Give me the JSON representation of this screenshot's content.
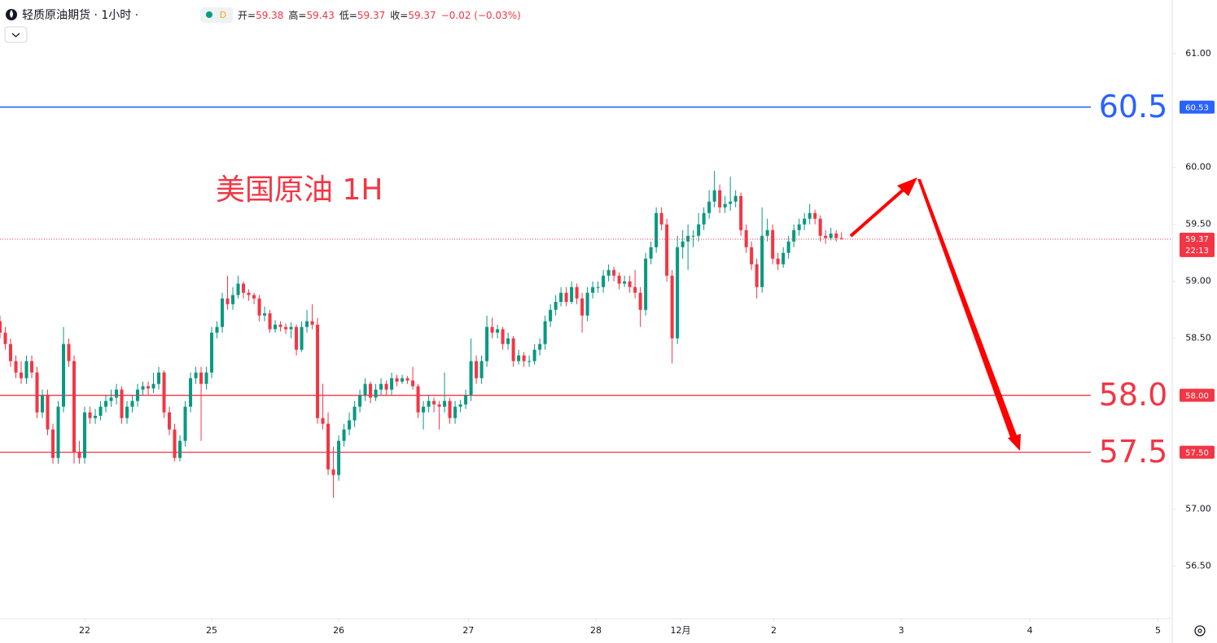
{
  "chart_data": {
    "type": "candlestick",
    "header": {
      "symbol": "轻质原油期货 · 1小时 ·",
      "badge": "D",
      "items": [
        {
          "label": "开=",
          "value": "59.38"
        },
        {
          "label": "高=",
          "value": "59.43"
        },
        {
          "label": "低=",
          "value": "59.37"
        },
        {
          "label": "收=",
          "value": "59.37"
        }
      ],
      "change": "−0.02 (−0.03%)"
    },
    "annotation": "美国原油 1H",
    "up_color": "#089981",
    "down_color": "#f23645",
    "xlim": [
      0,
      221.5
    ],
    "xticks": [
      {
        "value": 16,
        "label": "22"
      },
      {
        "value": 40,
        "label": "25"
      },
      {
        "value": 64,
        "label": "26"
      },
      {
        "value": 88.5,
        "label": "27"
      },
      {
        "value": 112.6,
        "label": "28"
      },
      {
        "value": 128.6,
        "label": "12月"
      },
      {
        "value": 146.2,
        "label": "2"
      },
      {
        "value": 170.3,
        "label": "3"
      },
      {
        "value": 194.6,
        "label": "4"
      },
      {
        "value": 218.8,
        "label": "5"
      }
    ],
    "ylim": [
      56.04,
      61.47
    ],
    "yticks": [
      {
        "value": 61,
        "label": "61.00"
      },
      {
        "value": 60,
        "label": "60.00"
      },
      {
        "value": 59.5,
        "label": "59.50"
      },
      {
        "value": 59,
        "label": "59.00"
      },
      {
        "value": 58.5,
        "label": "58.50"
      },
      {
        "value": 57,
        "label": "57.00"
      },
      {
        "value": 56.5,
        "label": "56.50"
      }
    ],
    "levels": [
      {
        "value": 60.53,
        "label": "60.53",
        "big_label": "60.5",
        "color": "#2962ff"
      },
      {
        "value": 58.0,
        "label": "58.00",
        "big_label": "58.0",
        "color": "#f23645"
      },
      {
        "value": 57.5,
        "label": "57.50",
        "big_label": "57.5",
        "color": "#f23645"
      }
    ],
    "current": {
      "value": 59.37,
      "label": "59.37",
      "countdown": "22:13",
      "color": "#f23645"
    },
    "candles": [
      [
        58.65,
        58.7,
        58.5,
        58.55
      ],
      [
        58.55,
        58.6,
        58.4,
        58.45
      ],
      [
        58.45,
        58.5,
        58.25,
        58.3
      ],
      [
        58.3,
        58.35,
        58.15,
        58.2
      ],
      [
        58.2,
        58.3,
        58.1,
        58.15
      ],
      [
        58.15,
        58.35,
        58.1,
        58.3
      ],
      [
        58.3,
        58.35,
        58.15,
        58.2
      ],
      [
        58.2,
        58.25,
        57.8,
        57.85
      ],
      [
        57.85,
        58.05,
        57.8,
        58.0
      ],
      [
        58.0,
        58.05,
        57.65,
        57.7
      ],
      [
        57.7,
        57.75,
        57.4,
        57.45
      ],
      [
        57.45,
        57.95,
        57.4,
        57.9
      ],
      [
        57.9,
        58.6,
        57.85,
        58.45
      ],
      [
        58.45,
        58.5,
        58.25,
        58.3
      ],
      [
        58.3,
        58.35,
        57.4,
        57.5
      ],
      [
        57.5,
        57.6,
        57.4,
        57.45
      ],
      [
        57.45,
        57.9,
        57.4,
        57.85
      ],
      [
        57.85,
        57.9,
        57.75,
        57.8
      ],
      [
        57.8,
        57.88,
        57.75,
        57.82
      ],
      [
        57.82,
        57.95,
        57.78,
        57.9
      ],
      [
        57.9,
        58.0,
        57.85,
        57.95
      ],
      [
        57.95,
        58.05,
        57.9,
        57.98
      ],
      [
        57.98,
        58.1,
        57.92,
        58.05
      ],
      [
        58.05,
        58.08,
        57.75,
        57.8
      ],
      [
        57.8,
        57.95,
        57.75,
        57.9
      ],
      [
        57.9,
        58.0,
        57.85,
        57.95
      ],
      [
        57.95,
        58.1,
        57.9,
        58.05
      ],
      [
        58.05,
        58.12,
        58.0,
        58.08
      ],
      [
        58.08,
        58.12,
        58.0,
        58.06
      ],
      [
        58.06,
        58.2,
        58.02,
        58.1
      ],
      [
        58.1,
        58.25,
        58.05,
        58.2
      ],
      [
        58.2,
        58.22,
        57.8,
        57.85
      ],
      [
        57.85,
        57.9,
        57.65,
        57.7
      ],
      [
        57.7,
        57.75,
        57.42,
        57.45
      ],
      [
        57.45,
        57.65,
        57.42,
        57.6
      ],
      [
        57.6,
        57.95,
        57.55,
        57.9
      ],
      [
        57.9,
        58.2,
        57.85,
        58.15
      ],
      [
        58.15,
        58.25,
        58.1,
        58.2
      ],
      [
        58.2,
        58.25,
        57.6,
        58.1
      ],
      [
        58.1,
        58.25,
        58.05,
        58.2
      ],
      [
        58.2,
        58.6,
        58.15,
        58.55
      ],
      [
        58.55,
        58.65,
        58.5,
        58.6
      ],
      [
        58.6,
        58.9,
        58.55,
        58.85
      ],
      [
        58.85,
        59.05,
        58.75,
        58.8
      ],
      [
        58.8,
        58.95,
        58.75,
        58.88
      ],
      [
        58.88,
        59.05,
        58.85,
        58.98
      ],
      [
        58.98,
        59.0,
        58.85,
        58.9
      ],
      [
        58.9,
        58.93,
        58.83,
        58.88
      ],
      [
        58.88,
        58.9,
        58.8,
        58.85
      ],
      [
        58.85,
        58.88,
        58.65,
        58.7
      ],
      [
        58.7,
        58.78,
        58.65,
        58.72
      ],
      [
        58.72,
        58.75,
        58.55,
        58.58
      ],
      [
        58.58,
        58.66,
        58.55,
        58.62
      ],
      [
        58.62,
        58.65,
        58.56,
        58.6
      ],
      [
        58.6,
        58.63,
        58.54,
        58.58
      ],
      [
        58.58,
        58.64,
        58.5,
        58.6
      ],
      [
        58.6,
        58.62,
        58.35,
        58.4
      ],
      [
        58.4,
        58.65,
        58.38,
        58.6
      ],
      [
        58.6,
        58.75,
        58.55,
        58.65
      ],
      [
        58.65,
        58.8,
        58.58,
        58.62
      ],
      [
        58.62,
        58.68,
        57.75,
        57.8
      ],
      [
        57.8,
        58.1,
        57.7,
        57.75
      ],
      [
        57.75,
        57.85,
        57.3,
        57.35
      ],
      [
        57.35,
        57.55,
        57.1,
        57.3
      ],
      [
        57.3,
        57.65,
        57.25,
        57.6
      ],
      [
        57.6,
        57.75,
        57.55,
        57.7
      ],
      [
        57.7,
        57.85,
        57.65,
        57.78
      ],
      [
        57.78,
        57.95,
        57.72,
        57.9
      ],
      [
        57.9,
        58.05,
        57.85,
        58.0
      ],
      [
        58.0,
        58.15,
        57.95,
        58.1
      ],
      [
        58.1,
        58.12,
        57.93,
        57.98
      ],
      [
        57.98,
        58.1,
        57.95,
        58.05
      ],
      [
        58.05,
        58.15,
        58.0,
        58.1
      ],
      [
        58.1,
        58.13,
        58.0,
        58.05
      ],
      [
        58.05,
        58.2,
        58.0,
        58.15
      ],
      [
        58.15,
        58.18,
        58.08,
        58.12
      ],
      [
        58.12,
        58.18,
        58.1,
        58.15
      ],
      [
        58.15,
        58.17,
        58.1,
        58.13
      ],
      [
        58.13,
        58.25,
        58.05,
        58.08
      ],
      [
        58.08,
        58.1,
        57.8,
        57.85
      ],
      [
        57.85,
        57.95,
        57.7,
        57.9
      ],
      [
        57.9,
        58.0,
        57.85,
        57.95
      ],
      [
        57.95,
        57.98,
        57.85,
        57.92
      ],
      [
        57.92,
        57.95,
        57.7,
        57.9
      ],
      [
        57.9,
        58.2,
        57.85,
        57.95
      ],
      [
        57.95,
        57.98,
        57.75,
        57.8
      ],
      [
        57.8,
        57.95,
        57.75,
        57.9
      ],
      [
        57.9,
        57.96,
        57.85,
        57.92
      ],
      [
        57.92,
        58.05,
        57.88,
        58.0
      ],
      [
        58.0,
        58.5,
        57.95,
        58.3
      ],
      [
        58.3,
        58.35,
        58.1,
        58.15
      ],
      [
        58.15,
        58.35,
        58.1,
        58.3
      ],
      [
        58.3,
        58.7,
        58.25,
        58.6
      ],
      [
        58.6,
        58.68,
        58.5,
        58.55
      ],
      [
        58.55,
        58.62,
        58.5,
        58.58
      ],
      [
        58.58,
        58.6,
        58.4,
        58.45
      ],
      [
        58.45,
        58.55,
        58.4,
        58.5
      ],
      [
        58.5,
        58.52,
        58.25,
        58.3
      ],
      [
        58.3,
        58.4,
        58.27,
        58.35
      ],
      [
        58.35,
        58.38,
        58.25,
        58.3
      ],
      [
        58.3,
        58.35,
        58.25,
        58.3
      ],
      [
        58.3,
        58.45,
        58.27,
        58.4
      ],
      [
        58.4,
        58.5,
        58.35,
        58.45
      ],
      [
        58.45,
        58.7,
        58.4,
        58.65
      ],
      [
        58.65,
        58.8,
        58.6,
        58.75
      ],
      [
        58.75,
        58.88,
        58.7,
        58.82
      ],
      [
        58.82,
        58.95,
        58.78,
        58.9
      ],
      [
        58.9,
        58.95,
        58.78,
        58.82
      ],
      [
        58.82,
        59.0,
        58.8,
        58.95
      ],
      [
        58.95,
        58.98,
        58.8,
        58.85
      ],
      [
        58.85,
        58.9,
        58.55,
        58.7
      ],
      [
        58.7,
        58.95,
        58.65,
        58.9
      ],
      [
        58.9,
        59.0,
        58.85,
        58.95
      ],
      [
        58.95,
        59.0,
        58.9,
        58.95
      ],
      [
        58.95,
        59.1,
        58.9,
        59.05
      ],
      [
        59.05,
        59.15,
        59.0,
        59.1
      ],
      [
        59.1,
        59.13,
        59.0,
        59.05
      ],
      [
        59.05,
        59.08,
        58.93,
        58.98
      ],
      [
        58.98,
        59.05,
        58.95,
        59.0
      ],
      [
        59.0,
        59.05,
        58.9,
        58.95
      ],
      [
        58.95,
        59.1,
        58.85,
        58.9
      ],
      [
        58.9,
        58.95,
        58.6,
        58.75
      ],
      [
        58.75,
        59.25,
        58.7,
        59.2
      ],
      [
        59.2,
        59.35,
        59.15,
        59.3
      ],
      [
        59.3,
        59.65,
        59.25,
        59.6
      ],
      [
        59.6,
        59.65,
        59.45,
        59.5
      ],
      [
        59.5,
        59.55,
        59.0,
        59.05
      ],
      [
        59.05,
        59.1,
        58.28,
        58.5
      ],
      [
        58.5,
        59.4,
        58.45,
        59.3
      ],
      [
        59.3,
        59.45,
        59.2,
        59.35
      ],
      [
        59.35,
        59.5,
        59.1,
        59.4
      ],
      [
        59.4,
        59.45,
        59.3,
        59.4
      ],
      [
        59.4,
        59.6,
        59.35,
        59.5
      ],
      [
        59.5,
        59.65,
        59.45,
        59.6
      ],
      [
        59.6,
        59.8,
        59.55,
        59.7
      ],
      [
        59.7,
        59.97,
        59.65,
        59.8
      ],
      [
        59.8,
        59.85,
        59.6,
        59.65
      ],
      [
        59.65,
        59.75,
        59.6,
        59.68
      ],
      [
        59.68,
        59.92,
        59.62,
        59.7
      ],
      [
        59.7,
        59.8,
        59.65,
        59.75
      ],
      [
        59.75,
        59.78,
        59.4,
        59.45
      ],
      [
        59.45,
        59.5,
        59.25,
        59.3
      ],
      [
        59.3,
        59.35,
        59.1,
        59.15
      ],
      [
        59.15,
        59.2,
        58.85,
        58.95
      ],
      [
        58.95,
        59.65,
        58.9,
        59.4
      ],
      [
        59.4,
        59.55,
        59.35,
        59.45
      ],
      [
        59.45,
        59.5,
        59.15,
        59.2
      ],
      [
        59.2,
        59.25,
        59.1,
        59.15
      ],
      [
        59.15,
        59.3,
        59.12,
        59.25
      ],
      [
        59.25,
        59.4,
        59.2,
        59.35
      ],
      [
        59.35,
        59.5,
        59.3,
        59.45
      ],
      [
        59.45,
        59.55,
        59.4,
        59.5
      ],
      [
        59.5,
        59.6,
        59.45,
        59.55
      ],
      [
        59.55,
        59.68,
        59.5,
        59.6
      ],
      [
        59.6,
        59.63,
        59.5,
        59.55
      ],
      [
        59.55,
        59.58,
        59.35,
        59.4
      ],
      [
        59.4,
        59.45,
        59.33,
        59.38
      ],
      [
        59.38,
        59.47,
        59.36,
        59.42
      ],
      [
        59.42,
        59.45,
        59.35,
        59.38
      ],
      [
        59.38,
        59.43,
        59.37,
        59.37
      ]
    ]
  }
}
